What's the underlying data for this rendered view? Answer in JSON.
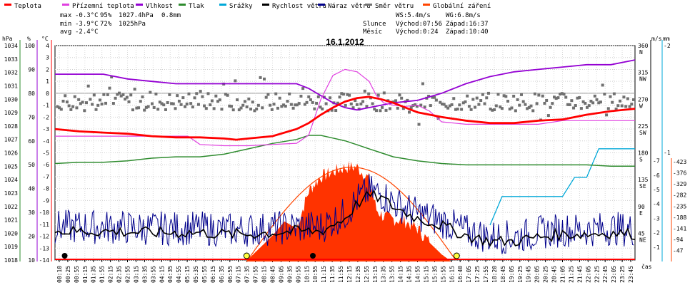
{
  "title": "16.1.2012",
  "legend": [
    {
      "label": "Teplota",
      "color": "#ff0000"
    },
    {
      "label": "Přízemní teplota",
      "color": "#e040e0"
    },
    {
      "label": "Vlhkost",
      "color": "#9400d3"
    },
    {
      "label": "Tlak",
      "color": "#2e8b2e"
    },
    {
      "label": "Srážky",
      "color": "#00a8d8"
    },
    {
      "label": "Rychlost větru",
      "color": "#000000"
    },
    {
      "label": "Náraz větru",
      "color": "#00008b"
    },
    {
      "label": "Směr větru",
      "color": "#707070"
    },
    {
      "label": "Globální záření",
      "color": "#ff4500"
    }
  ],
  "stats": {
    "max_label": "max",
    "max_temp": "-0.3°C",
    "max_hum": "95%",
    "max_press": "1027.4hPa",
    "max_rain": "0.8mm",
    "min_label": "min",
    "min_temp": "-3.9°C",
    "min_hum": "72%",
    "min_press": "1025hPa",
    "avg_label": "avg",
    "avg_temp": "-2.4°C"
  },
  "sun": {
    "ws": "WS:5.4m/s",
    "wg": "WG:6.8m/s",
    "slunce": "Slunce",
    "slunce_rise": "Východ:07:56",
    "slunce_set": "Západ:16:37",
    "mesic": "Měsíc",
    "mesic_rise": "Východ:0:24",
    "mesic_set": "Západ:10:40"
  },
  "axis_units": {
    "hpa": "hPa",
    "pct": "%",
    "degc": "°C",
    "ms": "m/s",
    "mm": "mm",
    "cas": "čas"
  },
  "chart_data": {
    "type": "line",
    "title": "16.1.2012",
    "xlabel": "čas",
    "x_ticks": [
      "00:10",
      "00:25",
      "00:55",
      "01:15",
      "01:35",
      "01:55",
      "02:15",
      "02:35",
      "02:55",
      "03:15",
      "03:35",
      "03:55",
      "04:15",
      "04:35",
      "04:55",
      "05:15",
      "05:35",
      "05:55",
      "06:15",
      "06:35",
      "06:55",
      "07:15",
      "07:35",
      "07:55",
      "08:15",
      "08:45",
      "09:05",
      "09:35",
      "09:55",
      "10:15",
      "10:55",
      "11:15",
      "11:35",
      "11:55",
      "12:15",
      "12:35",
      "12:55",
      "13:15",
      "13:35",
      "13:55",
      "14:15",
      "14:35",
      "14:55",
      "15:15",
      "15:35",
      "15:55",
      "16:15",
      "16:40",
      "17:05",
      "17:25",
      "17:55",
      "18:20",
      "18:45",
      "19:05",
      "19:25",
      "19:45",
      "20:05",
      "20:25",
      "20:45",
      "21:05",
      "21:25",
      "21:45",
      "22:05",
      "22:25",
      "22:45",
      "23:05",
      "23:25",
      "23:45"
    ],
    "y_axes": {
      "pressure_hPa": {
        "ticks": [
          1034,
          1033,
          1032,
          1031,
          1030,
          1029,
          1028,
          1027,
          1026,
          1025,
          1024,
          1023,
          1022,
          1021,
          1020,
          1019,
          1018
        ]
      },
      "humidity_pct": {
        "ticks": [
          100,
          90,
          80,
          70,
          60,
          50,
          40,
          30,
          20,
          10
        ]
      },
      "temperature_C": {
        "ticks": [
          4,
          3,
          2,
          1,
          0,
          -1,
          -2,
          -3,
          -4,
          -5,
          -6,
          -7,
          -8,
          -9,
          -10,
          -11,
          -12,
          -13,
          -14
        ]
      },
      "wind_direction": {
        "ticks": [
          "360 N",
          "315 NW",
          "270 W",
          "225 SW",
          "180 S",
          "135 SE",
          "90 E",
          "45 NE"
        ]
      },
      "wind_ms": {
        "ticks": [
          7,
          6,
          5,
          4,
          3,
          2,
          1
        ]
      },
      "rain_mm": {
        "ticks": [
          2,
          1
        ]
      },
      "radiation_Wm2": {
        "ticks": [
          423,
          376,
          329,
          282,
          235,
          188,
          141,
          94,
          47
        ]
      }
    },
    "series": [
      {
        "name": "Teplota",
        "unit": "°C",
        "hours": [
          0,
          1,
          2,
          3,
          4,
          5,
          6,
          7,
          7.5,
          8,
          9,
          10,
          10.5,
          11,
          11.5,
          12,
          12.5,
          13,
          13.5,
          14,
          14.5,
          15,
          16,
          17,
          18,
          19,
          20,
          21,
          22,
          23,
          24
        ],
        "values": [
          -3.0,
          -3.2,
          -3.3,
          -3.4,
          -3.6,
          -3.7,
          -3.7,
          -3.8,
          -3.9,
          -3.8,
          -3.6,
          -3.0,
          -2.5,
          -1.8,
          -1.2,
          -0.7,
          -0.4,
          -0.3,
          -0.5,
          -0.8,
          -1.2,
          -1.6,
          -2.0,
          -2.3,
          -2.5,
          -2.5,
          -2.3,
          -2.2,
          -1.8,
          -1.5,
          -1.3
        ]
      },
      {
        "name": "Přízemní teplota",
        "unit": "°C",
        "hours": [
          0,
          3,
          5.5,
          6,
          7,
          8,
          10,
          10.5,
          11,
          11.5,
          12,
          12.5,
          13,
          13.3,
          13.6,
          14,
          14.5,
          15,
          15.5,
          16,
          17,
          18,
          20,
          21,
          22,
          23,
          24
        ],
        "values": [
          -3.6,
          -3.6,
          -3.6,
          -4.3,
          -4.4,
          -4.4,
          -4.2,
          -3.5,
          -0.5,
          1.5,
          2.0,
          1.8,
          1.0,
          -0.2,
          -0.8,
          -1.0,
          -1.1,
          -1.0,
          -1.5,
          -2.4,
          -2.6,
          -2.6,
          -2.6,
          -2.3,
          -2.3,
          -2.3,
          -2.3
        ]
      },
      {
        "name": "Vlhkost",
        "unit": "%",
        "hours": [
          0,
          2,
          3,
          4,
          5,
          6,
          7,
          8,
          9,
          10,
          10.5,
          11,
          11.5,
          12,
          12.5,
          13,
          13.5,
          14,
          15,
          16,
          17,
          18,
          19,
          20,
          21,
          22,
          23,
          24
        ],
        "values": [
          88,
          88,
          86,
          85,
          84,
          84,
          84,
          84,
          84,
          84,
          82,
          79,
          76,
          74,
          73,
          74,
          75,
          76,
          77,
          80,
          84,
          87,
          89,
          90,
          91,
          92,
          92,
          94
        ]
      },
      {
        "name": "Tlak",
        "unit": "hPa",
        "hours": [
          0,
          1,
          2,
          3,
          4,
          5,
          6,
          7,
          8,
          9,
          10,
          10.5,
          11,
          11.5,
          12,
          12.5,
          13,
          13.5,
          14,
          15,
          16,
          17,
          18,
          19,
          20,
          21,
          22,
          23,
          24
        ],
        "values": [
          1025.2,
          1025.3,
          1025.3,
          1025.4,
          1025.6,
          1025.7,
          1025.7,
          1025.9,
          1026.3,
          1026.7,
          1027.0,
          1027.3,
          1027.3,
          1027.1,
          1026.9,
          1026.6,
          1026.3,
          1026.0,
          1025.7,
          1025.4,
          1025.2,
          1025.1,
          1025.1,
          1025.1,
          1025.1,
          1025.1,
          1025.1,
          1025.0,
          1025.0
        ]
      },
      {
        "name": "Srážky",
        "unit": "mm",
        "hours": [
          18,
          18.5,
          21,
          21.5,
          22,
          22.5,
          23,
          24
        ],
        "values": [
          0,
          0.3,
          0.3,
          0.5,
          0.5,
          0.8,
          0.8,
          0.8
        ]
      },
      {
        "name": "Rychlost větru",
        "unit": "m/s",
        "hours": [
          0,
          2,
          4,
          6,
          7,
          8,
          9,
          10,
          11,
          12,
          12.5,
          13,
          13.5,
          14,
          15,
          16,
          17,
          18,
          19,
          20,
          21,
          22,
          23,
          24
        ],
        "values": [
          2.1,
          2.1,
          2.0,
          2.0,
          1.9,
          1.9,
          2.0,
          2.1,
          2.1,
          3.0,
          4.0,
          4.6,
          4.4,
          3.8,
          3.0,
          2.5,
          1.8,
          1.4,
          1.4,
          1.7,
          1.9,
          1.9,
          2.0,
          1.9
        ]
      },
      {
        "name": "Globální záření",
        "unit": "W/m²",
        "hours": [
          7.9,
          8.5,
          9,
          9.5,
          10,
          10.5,
          11,
          11.5,
          12,
          12.5,
          13,
          13.3,
          13.6,
          14,
          14.5,
          15,
          15.5,
          16,
          16.4
        ],
        "values": [
          0,
          60,
          110,
          170,
          140,
          300,
          360,
          380,
          400,
          400,
          350,
          220,
          190,
          180,
          170,
          140,
          80,
          30,
          0
        ]
      }
    ],
    "direction_band": "most points 260-280° (W)"
  }
}
